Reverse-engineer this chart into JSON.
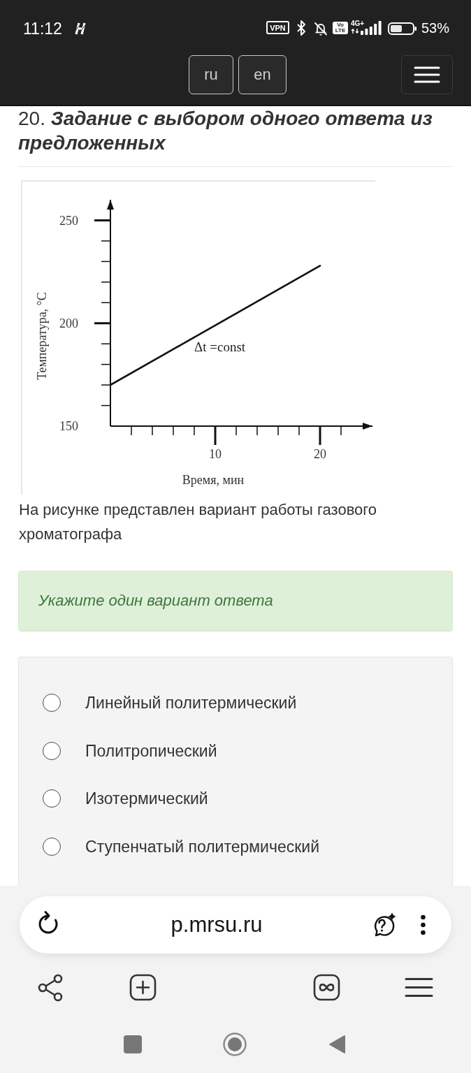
{
  "chart_data": {
    "type": "line",
    "title": "20. Задание с выбором одного ответа из предложенных",
    "xlabel": "Время, мин",
    "ylabel": "Температура, °C",
    "x": [
      0,
      20
    ],
    "values": [
      170,
      228
    ],
    "color": "#111111",
    "xlim": [
      0,
      25
    ],
    "ylim": [
      150,
      260
    ],
    "xticks": [
      {
        "value": 2,
        "label": null
      },
      {
        "value": 4,
        "label": null
      },
      {
        "value": 6,
        "label": null
      },
      {
        "value": 8,
        "label": null
      },
      10,
      {
        "value": 12,
        "label": null
      },
      {
        "value": 14,
        "label": null
      },
      {
        "value": 16,
        "label": null
      },
      {
        "value": 18,
        "label": null
      },
      20,
      {
        "value": 22,
        "label": null
      }
    ],
    "yticks": [
      150,
      {
        "value": 160,
        "label": null
      },
      {
        "value": 170,
        "label": null
      },
      {
        "value": 180,
        "label": null
      },
      {
        "value": 190,
        "label": null
      },
      200,
      {
        "value": 210,
        "label": null
      },
      {
        "value": 220,
        "label": null
      },
      {
        "value": 230,
        "label": null
      },
      {
        "value": 240,
        "label": null
      },
      250
    ],
    "annotations": [
      "Δt =const",
      "На рисунке представлен вариант работы газового хроматографа",
      "Укажите один вариант ответа",
      "Линейный политермический",
      "Политропический",
      "Изотермический",
      "Ступенчатый политермический",
      "11:12",
      "VPN",
      "Vo LTE",
      "4G+",
      "53%",
      "ru",
      "en",
      "p.mrsu.ru"
    ]
  }
}
